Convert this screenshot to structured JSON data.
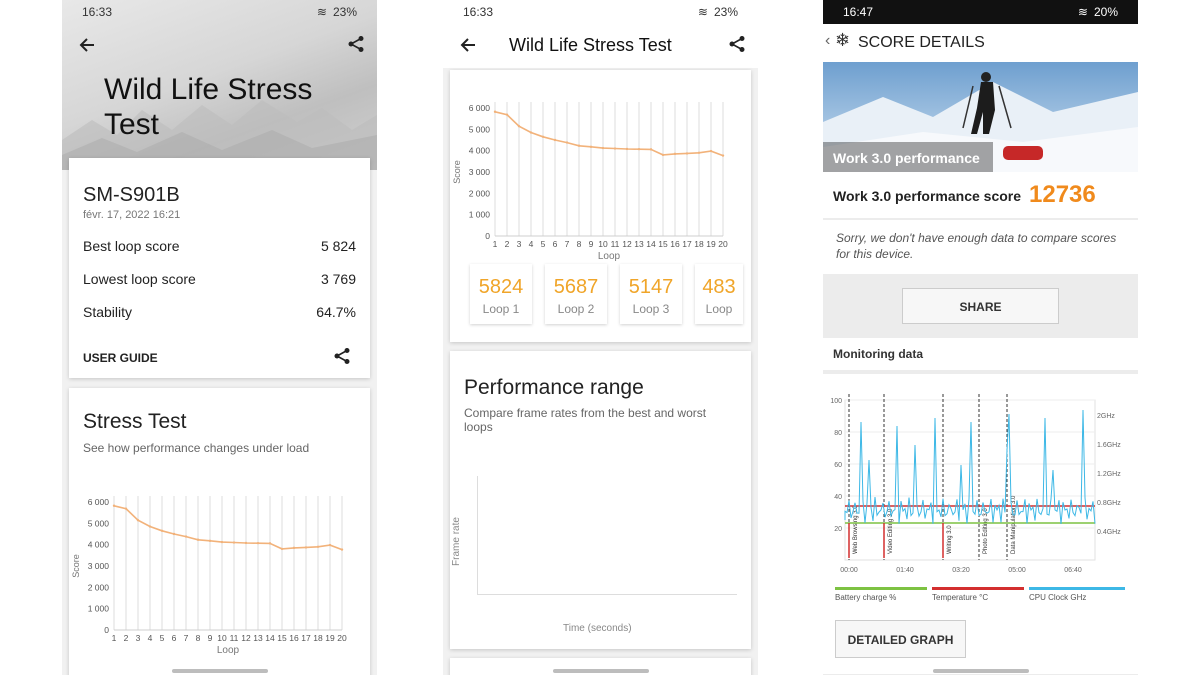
{
  "phone1": {
    "status": {
      "time": "16:33",
      "battery": "23%"
    },
    "header_title": "Wild Life Stress Test",
    "device": "SM-S901B",
    "date": "févr. 17, 2022 16:21",
    "metrics": [
      {
        "label": "Best loop score",
        "value": "5 824"
      },
      {
        "label": "Lowest loop score",
        "value": "3 769"
      },
      {
        "label": "Stability",
        "value": "64.7%"
      }
    ],
    "user_guide": "USER GUIDE",
    "stress_title": "Stress Test",
    "stress_subtitle": "See how performance changes under load"
  },
  "phone2": {
    "status": {
      "time": "16:33",
      "battery": "23%"
    },
    "app_title": "Wild Life Stress Test",
    "loops": [
      {
        "value": "5824",
        "label": "Loop 1"
      },
      {
        "value": "5687",
        "label": "Loop 2"
      },
      {
        "value": "5147",
        "label": "Loop 3"
      },
      {
        "value": "483",
        "label": "Loop"
      }
    ],
    "perf_title": "Performance range",
    "perf_subtitle": "Compare frame rates from the best and worst loops",
    "perf_ylabel": "Frame rate",
    "perf_xlabel": "Time (seconds)"
  },
  "phone3": {
    "status": {
      "time": "16:47",
      "battery": "20%"
    },
    "title": "SCORE DETAILS",
    "banner_caption": "Work 3.0 performance",
    "score_label": "Work 3.0 performance score",
    "score_value": "12736",
    "sorry_text": "Sorry, we don't have enough data to compare scores for this device.",
    "share_label": "SHARE",
    "monitoring_title": "Monitoring data",
    "left_ticks": [
      "100",
      "80",
      "60",
      "40",
      "20"
    ],
    "right_ticks": [
      "2GHz",
      "1.6GHz",
      "1.2GHz",
      "0.8GHz",
      "0.4GHz"
    ],
    "x_ticks": [
      "00:00",
      "01:40",
      "03:20",
      "05:00",
      "06:40"
    ],
    "task_labels": [
      "Web Browsing 3.0",
      "Video Editing 3.0",
      "Writing 3.0",
      "Photo Editing 3.0",
      "Data Manipulation 3.0"
    ],
    "legend": [
      {
        "label": "Battery charge %",
        "color": "#7dc242"
      },
      {
        "label": "Temperature °C",
        "color": "#d32f2f"
      },
      {
        "label": "CPU Clock GHz",
        "color": "#3db8e6"
      }
    ],
    "detailed_graph": "DETAILED GRAPH"
  },
  "colors": {
    "accent_orange": "#f0a529",
    "cpu_blue": "#3db8e6"
  },
  "chart_data": [
    {
      "type": "line",
      "title": "",
      "xlabel": "Loop",
      "ylabel": "Score",
      "categories": [
        1,
        2,
        3,
        4,
        5,
        6,
        7,
        8,
        9,
        10,
        11,
        12,
        13,
        14,
        15,
        16,
        17,
        18,
        19,
        20
      ],
      "values": [
        5824,
        5687,
        5147,
        4850,
        4650,
        4500,
        4380,
        4230,
        4180,
        4120,
        4100,
        4080,
        4070,
        4060,
        3800,
        3850,
        3870,
        3900,
        3980,
        3769
      ],
      "ylim": [
        0,
        6000
      ],
      "yticks": [
        "0",
        "1 000",
        "2 000",
        "3 000",
        "4 000",
        "5 000",
        "6 000"
      ]
    },
    {
      "type": "line",
      "title": "",
      "xlabel": "Loop",
      "ylabel": "Score",
      "categories": [
        1,
        2,
        3,
        4,
        5,
        6,
        7,
        8,
        9,
        10,
        11,
        12,
        13,
        14,
        15,
        16,
        17,
        18,
        19,
        20
      ],
      "values": [
        5824,
        5687,
        5147,
        4850,
        4650,
        4500,
        4380,
        4230,
        4180,
        4120,
        4100,
        4080,
        4070,
        4060,
        3800,
        3850,
        3870,
        3900,
        3980,
        3769
      ],
      "ylim": [
        0,
        6000
      ],
      "yticks": [
        "0",
        "1 000",
        "2 000",
        "3 000",
        "4 000",
        "5 000",
        "6 000"
      ]
    }
  ]
}
